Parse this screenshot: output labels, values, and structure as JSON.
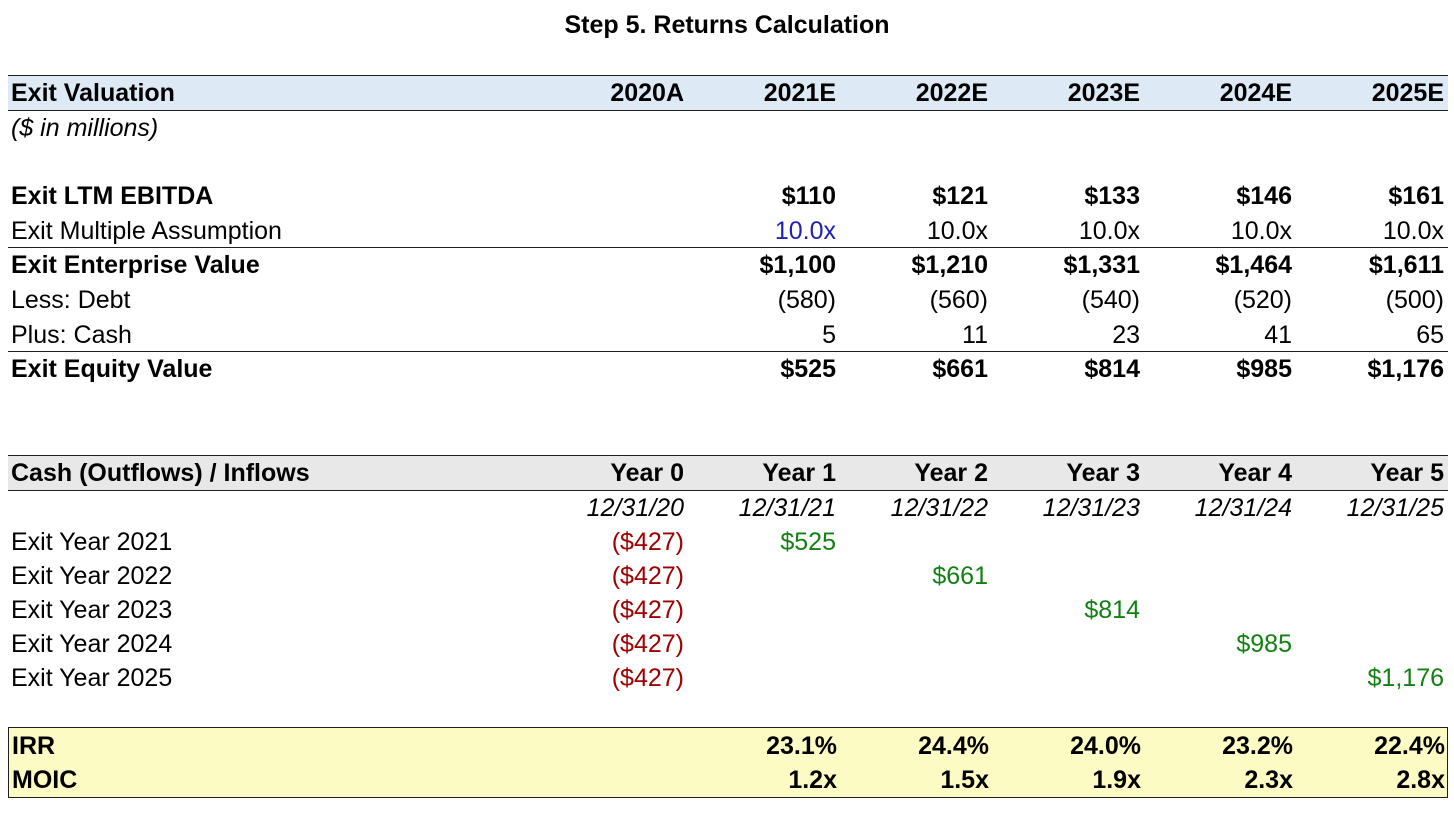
{
  "title": "Step 5. Returns Calculation",
  "exit_valuation": {
    "header": "Exit Valuation",
    "years": [
      "2020A",
      "2021E",
      "2022E",
      "2023E",
      "2024E",
      "2025E"
    ],
    "units": "($ in millions)",
    "rows": [
      {
        "label": "Exit LTM EBITDA",
        "values": [
          "",
          "$110",
          "$121",
          "$133",
          "$146",
          "$161"
        ]
      },
      {
        "label": "Exit Multiple Assumption",
        "values": [
          "",
          "10.0x",
          "10.0x",
          "10.0x",
          "10.0x",
          "10.0x"
        ]
      },
      {
        "label": "Exit Enterprise Value",
        "values": [
          "",
          "$1,100",
          "$1,210",
          "$1,331",
          "$1,464",
          "$1,611"
        ]
      },
      {
        "label": "Less: Debt",
        "values": [
          "",
          "(580)",
          "(560)",
          "(540)",
          "(520)",
          "(500)"
        ]
      },
      {
        "label": "Plus: Cash",
        "values": [
          "",
          "5",
          "11",
          "23",
          "41",
          "65"
        ]
      },
      {
        "label": "Exit Equity Value",
        "values": [
          "",
          "$525",
          "$661",
          "$814",
          "$985",
          "$1,176"
        ]
      }
    ]
  },
  "cash_flows": {
    "header": "Cash (Outflows) / Inflows",
    "periods": [
      "Year 0",
      "Year 1",
      "Year 2",
      "Year 3",
      "Year 4",
      "Year 5"
    ],
    "dates": [
      "12/31/20",
      "12/31/21",
      "12/31/22",
      "12/31/23",
      "12/31/24",
      "12/31/25"
    ],
    "rows": [
      {
        "label": "Exit Year 2021",
        "values": [
          "($427)",
          "$525",
          "",
          "",
          "",
          ""
        ]
      },
      {
        "label": "Exit Year 2022",
        "values": [
          "($427)",
          "",
          "$661",
          "",
          "",
          ""
        ]
      },
      {
        "label": "Exit Year 2023",
        "values": [
          "($427)",
          "",
          "",
          "$814",
          "",
          ""
        ]
      },
      {
        "label": "Exit Year 2024",
        "values": [
          "($427)",
          "",
          "",
          "",
          "$985",
          ""
        ]
      },
      {
        "label": "Exit Year 2025",
        "values": [
          "($427)",
          "",
          "",
          "",
          "",
          "$1,176"
        ]
      }
    ]
  },
  "returns": {
    "irr": {
      "label": "IRR",
      "values": [
        "",
        "23.1%",
        "24.4%",
        "24.0%",
        "23.2%",
        "22.4%"
      ]
    },
    "moic": {
      "label": "MOIC",
      "values": [
        "",
        "1.2x",
        "1.5x",
        "1.9x",
        "2.3x",
        "2.8x"
      ]
    }
  },
  "colors": {
    "input_blue": "#1f1fb0",
    "outflow_red": "#a00000",
    "inflow_green": "#128012",
    "header_blue": "#dde9f4",
    "header_gray": "#e8e8e8",
    "summary_yellow": "#fdfbc4"
  }
}
